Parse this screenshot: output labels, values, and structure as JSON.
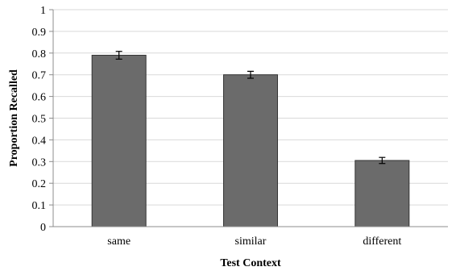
{
  "chart_data": {
    "type": "bar",
    "title": "",
    "xlabel": "Test Context",
    "ylabel": "Proportion Recalled",
    "categories": [
      "same",
      "similar",
      "different"
    ],
    "values": [
      0.79,
      0.7,
      0.305
    ],
    "errors": [
      0.018,
      0.016,
      0.014
    ],
    "ylim": [
      0,
      1
    ],
    "yticks": [
      "0",
      "0.1",
      "0.2",
      "0.3",
      "0.4",
      "0.5",
      "0.6",
      "0.7",
      "0.8",
      "0.9",
      "1"
    ],
    "grid": true,
    "legend": "none",
    "colors": {
      "bar_fill": "#6b6b6b",
      "bar_stroke": "#333333",
      "grid": "#d9d9d9",
      "axis": "#8c8c8c"
    }
  }
}
